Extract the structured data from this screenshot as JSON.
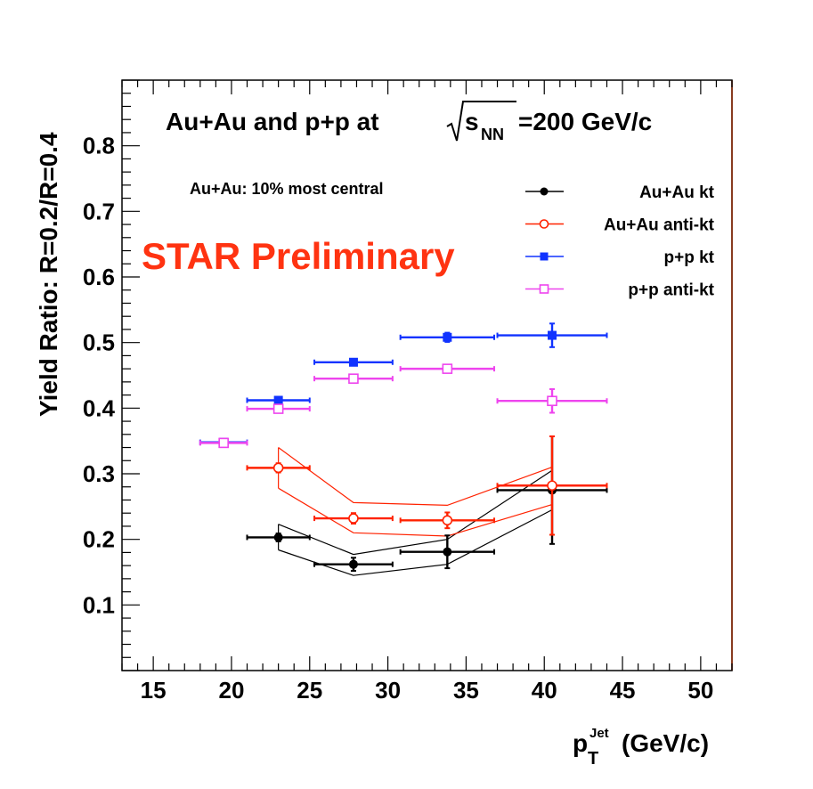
{
  "chart_data": {
    "type": "scatter",
    "title": {
      "prefix": "Au+Au and p+p at",
      "sqrt_var": "s",
      "sqrt_sub": "NN",
      "suffix": "=200 GeV/c"
    },
    "annotation": "Au+Au: 10% most central",
    "watermark": "STAR Preliminary",
    "ylabel": "Yield Ratio: R=0.2/R=0.4",
    "xlabel": {
      "main": "p",
      "sub": "T",
      "sup": "Jet",
      "unit": " (GeV/c)"
    },
    "xlim": [
      13,
      52
    ],
    "ylim": [
      0,
      0.9
    ],
    "xticks": [
      15,
      20,
      25,
      30,
      35,
      40,
      45,
      50
    ],
    "yticks": [
      0.1,
      0.2,
      0.3,
      0.4,
      0.5,
      0.6,
      0.7,
      0.8
    ],
    "legend_position": "top-right",
    "series": [
      {
        "name": "Au+Au kt",
        "color": "#000000",
        "marker": "circle-filled",
        "points": [
          {
            "x": 23.0,
            "y": 0.203,
            "xerr": 2.0,
            "yerr": 0.006
          },
          {
            "x": 27.8,
            "y": 0.162,
            "xerr": 2.5,
            "yerr": 0.01
          },
          {
            "x": 33.8,
            "y": 0.181,
            "xerr": 3.0,
            "yerr": 0.025
          },
          {
            "x": 40.5,
            "y": 0.275,
            "xerr": 3.5,
            "yerr": 0.082
          }
        ],
        "sys_band": {
          "x": [
            23.0,
            27.8,
            33.8,
            40.5
          ],
          "upper": [
            0.223,
            0.177,
            0.2,
            0.305
          ],
          "lower": [
            0.184,
            0.145,
            0.162,
            0.245
          ]
        }
      },
      {
        "name": "Au+Au anti-kt",
        "color": "#ff2200",
        "marker": "circle-open",
        "points": [
          {
            "x": 23.0,
            "y": 0.309,
            "xerr": 2.0,
            "yerr": 0.007
          },
          {
            "x": 27.8,
            "y": 0.232,
            "xerr": 2.5,
            "yerr": 0.008
          },
          {
            "x": 33.8,
            "y": 0.229,
            "xerr": 3.0,
            "yerr": 0.012
          },
          {
            "x": 40.5,
            "y": 0.282,
            "xerr": 3.5,
            "yerr": 0.075
          }
        ],
        "sys_band": {
          "x": [
            23.0,
            27.8,
            33.8,
            40.5
          ],
          "upper": [
            0.34,
            0.256,
            0.252,
            0.31
          ],
          "lower": [
            0.278,
            0.21,
            0.205,
            0.253
          ]
        }
      },
      {
        "name": "p+p kt",
        "color": "#1133ff",
        "marker": "square-filled",
        "points": [
          {
            "x": 19.5,
            "y": 0.348,
            "xerr": 1.5,
            "yerr": 0.003
          },
          {
            "x": 23.0,
            "y": 0.412,
            "xerr": 2.0,
            "yerr": 0.003
          },
          {
            "x": 27.8,
            "y": 0.47,
            "xerr": 2.5,
            "yerr": 0.003
          },
          {
            "x": 33.8,
            "y": 0.508,
            "xerr": 3.0,
            "yerr": 0.007
          },
          {
            "x": 40.5,
            "y": 0.511,
            "xerr": 3.5,
            "yerr": 0.018
          }
        ]
      },
      {
        "name": "p+p anti-kt",
        "color": "#ee44ee",
        "marker": "square-open",
        "points": [
          {
            "x": 19.5,
            "y": 0.347,
            "xerr": 1.5,
            "yerr": 0.003
          },
          {
            "x": 23.0,
            "y": 0.399,
            "xerr": 2.0,
            "yerr": 0.004
          },
          {
            "x": 27.8,
            "y": 0.445,
            "xerr": 2.5,
            "yerr": 0.004
          },
          {
            "x": 33.8,
            "y": 0.46,
            "xerr": 3.0,
            "yerr": 0.006
          },
          {
            "x": 40.5,
            "y": 0.411,
            "xerr": 3.5,
            "yerr": 0.018
          }
        ]
      }
    ]
  }
}
